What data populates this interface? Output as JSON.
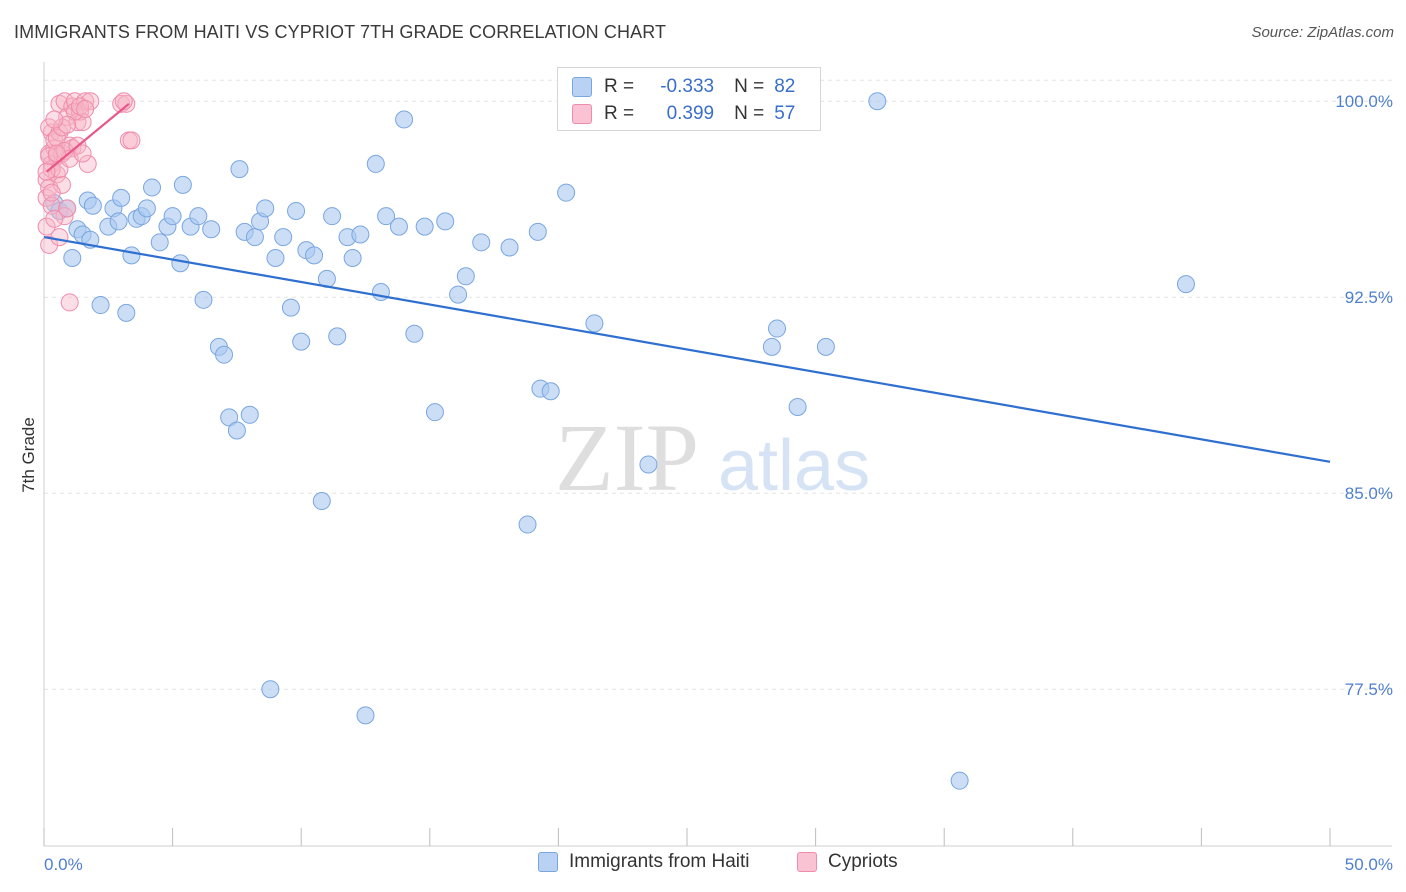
{
  "title": "IMMIGRANTS FROM HAITI VS CYPRIOT 7TH GRADE CORRELATION CHART",
  "source": "Source: ZipAtlas.com",
  "watermark": {
    "zip": "ZIP",
    "atlas": "atlas"
  },
  "colors": {
    "blue_fill": "#a9c8f0",
    "blue_stroke": "#7aa6e0",
    "blue_line": "#2f6fd0",
    "pink_fill": "#f7b6c8",
    "pink_stroke": "#f08cab",
    "pink_line": "#e8578a",
    "tick_text": "#4f7fcf",
    "grid": "#e3e3e3"
  },
  "legend": {
    "rows": [
      {
        "r_label": "R =",
        "r_value": "-0.333",
        "n_label": "N =",
        "n_value": "82",
        "series": "blue"
      },
      {
        "r_label": "R =",
        "r_value": "0.399",
        "n_label": "N =",
        "n_value": "57",
        "series": "pink"
      }
    ]
  },
  "bottom_legend": [
    {
      "label": "Immigrants from Haiti",
      "series": "blue"
    },
    {
      "label": "Cypriots",
      "series": "pink"
    }
  ],
  "chart_data": {
    "type": "scatter",
    "title": "IMMIGRANTS FROM HAITI VS CYPRIOT 7TH GRADE CORRELATION CHART",
    "xlabel": "",
    "ylabel": "7th Grade",
    "xlim": [
      0,
      50
    ],
    "ylim": [
      71.5,
      101.5
    ],
    "x_tick_labels": [
      {
        "value": 0,
        "label": "0.0%"
      },
      {
        "value": 50,
        "label": "50.0%"
      }
    ],
    "y_tick_labels": [
      {
        "value": 100,
        "label": "100.0%"
      },
      {
        "value": 92.5,
        "label": "92.5%"
      },
      {
        "value": 85,
        "label": "85.0%"
      },
      {
        "value": 77.5,
        "label": "77.5%"
      }
    ],
    "x_minor_ticks": [
      0,
      5,
      10,
      15,
      20,
      25,
      30,
      35,
      40,
      45,
      50
    ],
    "grid": true,
    "series": [
      {
        "name": "Immigrants from Haiti",
        "color": "blue",
        "R": -0.333,
        "N": 82,
        "trend": {
          "x": [
            0,
            50
          ],
          "y": [
            94.8,
            86.2
          ]
        },
        "points": [
          [
            0.4,
            96.1
          ],
          [
            0.6,
            95.8
          ],
          [
            0.9,
            95.9
          ],
          [
            1.1,
            94.0
          ],
          [
            1.3,
            95.1
          ],
          [
            1.5,
            94.9
          ],
          [
            1.7,
            96.2
          ],
          [
            1.9,
            96.0
          ],
          [
            2.2,
            92.2
          ],
          [
            2.5,
            95.2
          ],
          [
            2.7,
            95.9
          ],
          [
            2.9,
            95.4
          ],
          [
            3.0,
            96.3
          ],
          [
            3.2,
            91.9
          ],
          [
            3.4,
            94.1
          ],
          [
            3.6,
            95.5
          ],
          [
            3.8,
            95.6
          ],
          [
            4.0,
            95.9
          ],
          [
            4.2,
            96.7
          ],
          [
            4.5,
            94.6
          ],
          [
            4.8,
            95.2
          ],
          [
            5.0,
            95.6
          ],
          [
            5.3,
            93.8
          ],
          [
            5.4,
            96.8
          ],
          [
            5.7,
            95.2
          ],
          [
            6.0,
            95.6
          ],
          [
            6.2,
            92.4
          ],
          [
            6.5,
            95.1
          ],
          [
            6.8,
            90.6
          ],
          [
            7.0,
            90.3
          ],
          [
            7.2,
            87.9
          ],
          [
            7.5,
            87.4
          ],
          [
            7.6,
            97.4
          ],
          [
            7.8,
            95.0
          ],
          [
            8.0,
            88.0
          ],
          [
            8.2,
            94.8
          ],
          [
            8.4,
            95.4
          ],
          [
            8.6,
            95.9
          ],
          [
            8.8,
            77.5
          ],
          [
            9.0,
            94.0
          ],
          [
            9.3,
            94.8
          ],
          [
            9.6,
            92.1
          ],
          [
            9.8,
            95.8
          ],
          [
            10.0,
            90.8
          ],
          [
            10.2,
            94.3
          ],
          [
            10.5,
            94.1
          ],
          [
            10.8,
            84.7
          ],
          [
            11.0,
            93.2
          ],
          [
            11.2,
            95.6
          ],
          [
            11.4,
            91.0
          ],
          [
            11.8,
            94.8
          ],
          [
            12.0,
            94.0
          ],
          [
            12.3,
            94.9
          ],
          [
            12.5,
            76.5
          ],
          [
            12.9,
            97.6
          ],
          [
            13.1,
            92.7
          ],
          [
            13.3,
            95.6
          ],
          [
            13.8,
            95.2
          ],
          [
            14.0,
            99.3
          ],
          [
            14.4,
            91.1
          ],
          [
            14.8,
            95.2
          ],
          [
            15.2,
            88.1
          ],
          [
            15.6,
            95.4
          ],
          [
            16.1,
            92.6
          ],
          [
            16.4,
            93.3
          ],
          [
            17.0,
            94.6
          ],
          [
            18.1,
            94.4
          ],
          [
            18.8,
            83.8
          ],
          [
            19.2,
            95.0
          ],
          [
            19.3,
            89.0
          ],
          [
            19.7,
            88.9
          ],
          [
            20.3,
            96.5
          ],
          [
            21.4,
            91.5
          ],
          [
            23.5,
            86.1
          ],
          [
            28.3,
            90.6
          ],
          [
            28.5,
            91.3
          ],
          [
            29.3,
            88.3
          ],
          [
            30.4,
            90.6
          ],
          [
            32.4,
            100.0
          ],
          [
            35.6,
            74.0
          ],
          [
            44.4,
            93.0
          ],
          [
            1.8,
            94.7
          ]
        ]
      },
      {
        "name": "Cypriots",
        "color": "pink",
        "R": 0.399,
        "N": 57,
        "trend": {
          "x": [
            0.1,
            3.3
          ],
          "y": [
            97.3,
            99.9
          ]
        },
        "points": [
          [
            0.1,
            96.3
          ],
          [
            0.2,
            98.0
          ],
          [
            0.1,
            97.0
          ],
          [
            0.3,
            98.8
          ],
          [
            0.2,
            99.0
          ],
          [
            0.1,
            95.2
          ],
          [
            0.3,
            97.6
          ],
          [
            0.4,
            98.2
          ],
          [
            0.2,
            96.7
          ],
          [
            0.5,
            97.9
          ],
          [
            0.3,
            96.0
          ],
          [
            0.6,
            99.9
          ],
          [
            0.4,
            98.5
          ],
          [
            0.7,
            98.0
          ],
          [
            0.8,
            100.0
          ],
          [
            0.5,
            97.2
          ],
          [
            0.6,
            98.8
          ],
          [
            0.9,
            99.4
          ],
          [
            1.0,
            98.3
          ],
          [
            1.1,
            99.8
          ],
          [
            0.7,
            96.8
          ],
          [
            1.2,
            100.0
          ],
          [
            1.3,
            99.2
          ],
          [
            1.4,
            99.6
          ],
          [
            0.8,
            95.6
          ],
          [
            1.5,
            99.2
          ],
          [
            1.6,
            100.0
          ],
          [
            1.7,
            97.6
          ],
          [
            1.8,
            100.0
          ],
          [
            1.0,
            92.3
          ],
          [
            0.2,
            94.5
          ],
          [
            0.4,
            95.5
          ],
          [
            0.6,
            94.8
          ],
          [
            0.9,
            95.9
          ],
          [
            0.3,
            97.4
          ],
          [
            0.5,
            98.6
          ],
          [
            0.7,
            99.0
          ],
          [
            1.2,
            99.6
          ],
          [
            1.4,
            99.8
          ],
          [
            1.1,
            98.2
          ],
          [
            0.9,
            99.1
          ],
          [
            0.4,
            99.3
          ],
          [
            0.2,
            97.9
          ],
          [
            0.6,
            97.4
          ],
          [
            0.8,
            98.1
          ],
          [
            1.3,
            98.3
          ],
          [
            1.0,
            97.8
          ],
          [
            3.0,
            99.9
          ],
          [
            3.2,
            99.9
          ],
          [
            3.3,
            98.5
          ],
          [
            3.4,
            98.5
          ],
          [
            3.1,
            100.0
          ],
          [
            0.3,
            96.5
          ],
          [
            0.5,
            98.0
          ],
          [
            0.1,
            97.3
          ],
          [
            1.5,
            98.0
          ],
          [
            1.6,
            99.7
          ]
        ]
      }
    ]
  }
}
